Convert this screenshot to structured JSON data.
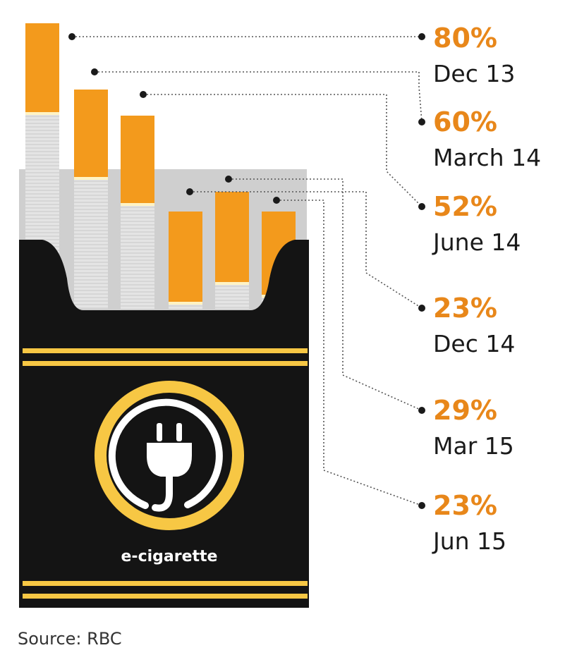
{
  "chart_data": {
    "type": "bar",
    "categories": [
      "Dec 13",
      "March 14",
      "June 14",
      "Dec 14",
      "Mar 15",
      "Jun 15"
    ],
    "values": [
      80,
      60,
      52,
      23,
      29,
      23
    ],
    "value_labels": [
      "80%",
      "60%",
      "52%",
      "23%",
      "29%",
      "23%"
    ],
    "unit": "%"
  },
  "brand_label": "e-cigarette",
  "source": "Source: RBC",
  "colors": {
    "orange": "#f39a1c",
    "pack": "#141414",
    "gold": "#f7c744",
    "label_orange": "#e8871a",
    "text": "#1a1a1a",
    "grey_panel": "#d0d0d0",
    "filter": "#e4e4e4"
  },
  "icons": {
    "logo": "plug-icon"
  }
}
